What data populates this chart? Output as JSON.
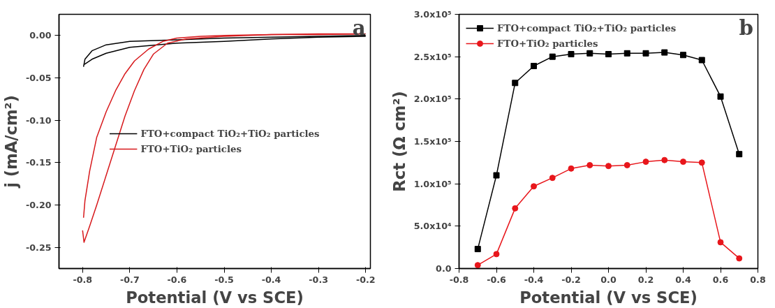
{
  "chart_data": [
    {
      "type": "line",
      "xlabel": "Potential (V vs SCE)",
      "ylabel": "j (mA/cm²)",
      "annotations": [
        "a"
      ],
      "xlim": [
        -0.85,
        -0.19
      ],
      "ylim": [
        -0.275,
        0.025
      ],
      "xticks": [
        -0.8,
        -0.7,
        -0.6,
        -0.5,
        -0.4,
        -0.3,
        -0.2
      ],
      "yticks": [
        {
          "value": 0,
          "label": "0.00"
        },
        {
          "value": -0.05,
          "label": "-0.05"
        },
        {
          "value": -0.1,
          "label": "-0.10"
        },
        {
          "value": -0.15,
          "label": "-0.15"
        },
        {
          "value": -0.2,
          "label": "-0.20"
        },
        {
          "value": -0.25,
          "label": "-0.25"
        }
      ],
      "grid": false,
      "legend": "center",
      "marker": "none",
      "line_style": "solid",
      "series": [
        {
          "name": "FTO+compact TiO₂+TiO₂ particles",
          "color": "#000000",
          "x": [
            -0.2,
            -0.3,
            -0.4,
            -0.5,
            -0.6,
            -0.7,
            -0.75,
            -0.78,
            -0.795,
            -0.798
          ],
          "values": [
            0.0,
            -0.001,
            -0.002,
            -0.003,
            -0.005,
            -0.007,
            -0.011,
            -0.018,
            -0.028,
            -0.037
          ]
        },
        {
          "color": "#000000",
          "x": [
            -0.796,
            -0.78,
            -0.75,
            -0.7,
            -0.6,
            -0.5,
            -0.4,
            -0.3,
            -0.2
          ],
          "values": [
            -0.034,
            -0.028,
            -0.021,
            -0.014,
            -0.009,
            -0.007,
            -0.004,
            -0.002,
            -0.001
          ]
        },
        {
          "name": "FTO+TiO₂ particles",
          "color": "#d7191c",
          "x": [
            -0.2,
            -0.3,
            -0.4,
            -0.5,
            -0.58,
            -0.62,
            -0.65,
            -0.67,
            -0.69,
            -0.71,
            -0.73,
            -0.75,
            -0.77,
            -0.785,
            -0.797,
            -0.8
          ],
          "values": [
            0.002,
            0.001,
            0.001,
            -0.001,
            -0.004,
            -0.009,
            -0.022,
            -0.04,
            -0.065,
            -0.095,
            -0.13,
            -0.165,
            -0.2,
            -0.225,
            -0.244,
            -0.23
          ]
        },
        {
          "color": "#d7191c",
          "x": [
            -0.798,
            -0.795,
            -0.785,
            -0.77,
            -0.75,
            -0.73,
            -0.71,
            -0.69,
            -0.66,
            -0.63,
            -0.6,
            -0.55,
            -0.5,
            -0.4,
            -0.3,
            -0.21
          ],
          "values": [
            -0.215,
            -0.195,
            -0.16,
            -0.12,
            -0.09,
            -0.065,
            -0.045,
            -0.03,
            -0.016,
            -0.007,
            -0.003,
            -0.001,
            0.0,
            0.001,
            0.002,
            0.002
          ]
        }
      ]
    },
    {
      "type": "line",
      "xlabel": "Potential (V vs SCE)",
      "ylabel": "Rct (Ω cm²)",
      "annotations": [
        "b"
      ],
      "xlim": [
        -0.8,
        0.8
      ],
      "ylim": [
        0,
        300000
      ],
      "xticks": [
        {
          "value": -0.8,
          "label": "-0.8"
        },
        {
          "value": -0.6,
          "label": "-0.6"
        },
        {
          "value": -0.4,
          "label": "-0.4"
        },
        {
          "value": -0.2,
          "label": "-0.2"
        },
        {
          "value": 0,
          "label": "0.0"
        },
        {
          "value": 0.2,
          "label": "0.2"
        },
        {
          "value": 0.4,
          "label": "0.4"
        },
        {
          "value": 0.6,
          "label": "0.6"
        },
        {
          "value": 0.8,
          "label": "0.8"
        }
      ],
      "yticks": [
        {
          "value": 0,
          "label": "0.0"
        },
        {
          "value": 50000,
          "label": "5.0x10⁴"
        },
        {
          "value": 100000,
          "label": "1.0x10⁵"
        },
        {
          "value": 150000,
          "label": "1.5x10⁵"
        },
        {
          "value": 200000,
          "label": "2.0x10⁵"
        },
        {
          "value": 250000,
          "label": "2.5x10⁵"
        },
        {
          "value": 300000,
          "label": "3.0x10⁵"
        }
      ],
      "grid": false,
      "legend": "top left",
      "line_style": "solid",
      "x": [
        -0.7,
        -0.6,
        -0.5,
        -0.4,
        -0.3,
        -0.2,
        -0.1,
        0.0,
        0.1,
        0.2,
        0.3,
        0.4,
        0.5,
        0.6,
        0.7
      ],
      "series": [
        {
          "name": "FTO+compact TiO₂+TiO₂ particles",
          "color": "#000000",
          "marker": "square",
          "values": [
            23000,
            110000,
            219000,
            239000,
            250000,
            253000,
            254000,
            253000,
            254000,
            254000,
            255000,
            252000,
            246000,
            203000,
            135000
          ]
        },
        {
          "name": "FTO+TiO₂ particles",
          "color": "#e8161b",
          "marker": "circle",
          "values": [
            4000,
            17000,
            71000,
            97000,
            107000,
            118000,
            122000,
            121000,
            122000,
            126000,
            128000,
            126000,
            125000,
            31000,
            12000
          ]
        }
      ]
    }
  ]
}
